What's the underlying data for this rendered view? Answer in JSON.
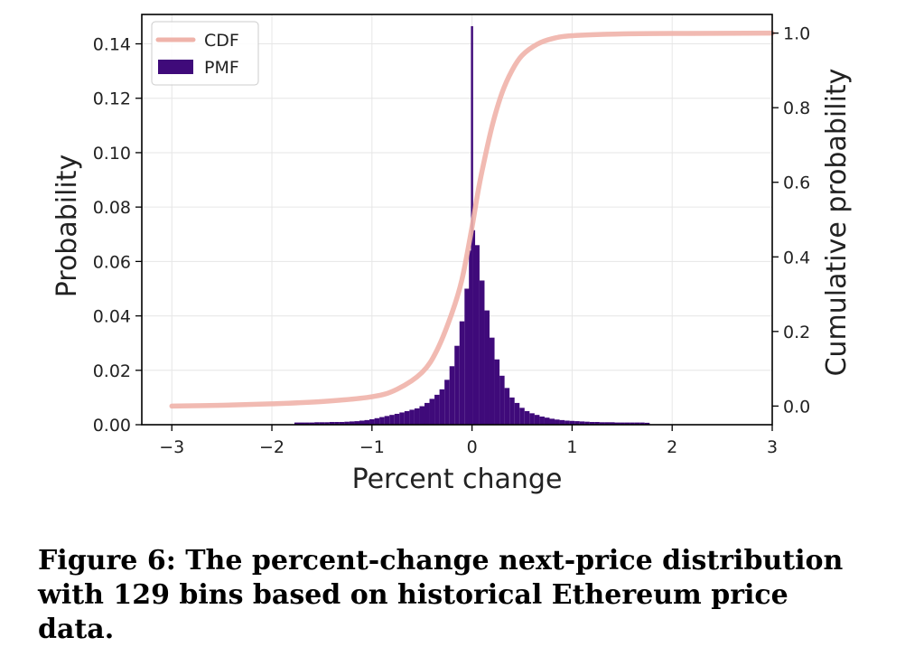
{
  "chart_data": {
    "type": "bar",
    "title": "",
    "xlabel": "Percent change",
    "ylabel": "Probability",
    "y2label": "Cumulative probability",
    "xlim": [
      -3.3,
      3.0
    ],
    "ylim": [
      0,
      0.1508
    ],
    "y2lim": [
      -0.05,
      1.05
    ],
    "xticks": [
      -3,
      -2,
      -1,
      0,
      1,
      2,
      3
    ],
    "xtick_labels": [
      "−3",
      "−2",
      "−1",
      "0",
      "1",
      "2",
      "3"
    ],
    "yticks": [
      0.0,
      0.02,
      0.04,
      0.06,
      0.08,
      0.1,
      0.12,
      0.14
    ],
    "ytick_labels": [
      "0.00",
      "0.02",
      "0.04",
      "0.06",
      "0.08",
      "0.10",
      "0.12",
      "0.14"
    ],
    "y2ticks": [
      0.0,
      0.2,
      0.4,
      0.6,
      0.8,
      1.0
    ],
    "y2tick_labels": [
      "0.0",
      "0.2",
      "0.4",
      "0.6",
      "0.8",
      "1.0"
    ],
    "grid": true,
    "legend": {
      "placement": "top-left",
      "entries": [
        "CDF",
        "PMF"
      ]
    },
    "series": [
      {
        "name": "PMF",
        "kind": "histogram",
        "color": "#3f0a7a",
        "bin_width": 0.05,
        "bins": [
          {
            "x": -1.75,
            "value": 0.0008
          },
          {
            "x": -1.7,
            "value": 0.0008
          },
          {
            "x": -1.65,
            "value": 0.0008
          },
          {
            "x": -1.6,
            "value": 0.0008
          },
          {
            "x": -1.55,
            "value": 0.0009
          },
          {
            "x": -1.5,
            "value": 0.0009
          },
          {
            "x": -1.45,
            "value": 0.0009
          },
          {
            "x": -1.4,
            "value": 0.001
          },
          {
            "x": -1.35,
            "value": 0.001
          },
          {
            "x": -1.3,
            "value": 0.001
          },
          {
            "x": -1.25,
            "value": 0.0011
          },
          {
            "x": -1.2,
            "value": 0.0012
          },
          {
            "x": -1.15,
            "value": 0.0013
          },
          {
            "x": -1.1,
            "value": 0.0015
          },
          {
            "x": -1.05,
            "value": 0.0017
          },
          {
            "x": -1.0,
            "value": 0.002
          },
          {
            "x": -0.95,
            "value": 0.0024
          },
          {
            "x": -0.9,
            "value": 0.0028
          },
          {
            "x": -0.85,
            "value": 0.0032
          },
          {
            "x": -0.8,
            "value": 0.0036
          },
          {
            "x": -0.75,
            "value": 0.004
          },
          {
            "x": -0.7,
            "value": 0.0045
          },
          {
            "x": -0.65,
            "value": 0.005
          },
          {
            "x": -0.6,
            "value": 0.0055
          },
          {
            "x": -0.55,
            "value": 0.006
          },
          {
            "x": -0.5,
            "value": 0.0068
          },
          {
            "x": -0.45,
            "value": 0.008
          },
          {
            "x": -0.4,
            "value": 0.0095
          },
          {
            "x": -0.35,
            "value": 0.011
          },
          {
            "x": -0.3,
            "value": 0.013
          },
          {
            "x": -0.25,
            "value": 0.0165
          },
          {
            "x": -0.2,
            "value": 0.0215
          },
          {
            "x": -0.15,
            "value": 0.029
          },
          {
            "x": -0.1,
            "value": 0.038
          },
          {
            "x": -0.05,
            "value": 0.05
          },
          {
            "x": -0.02,
            "value": 0.064
          },
          {
            "x": 0.0,
            "value": 0.1465
          },
          {
            "x": 0.02,
            "value": 0.0715
          },
          {
            "x": 0.05,
            "value": 0.066
          },
          {
            "x": 0.1,
            "value": 0.053
          },
          {
            "x": 0.15,
            "value": 0.042
          },
          {
            "x": 0.2,
            "value": 0.032
          },
          {
            "x": 0.25,
            "value": 0.024
          },
          {
            "x": 0.3,
            "value": 0.018
          },
          {
            "x": 0.35,
            "value": 0.0135
          },
          {
            "x": 0.4,
            "value": 0.01
          },
          {
            "x": 0.45,
            "value": 0.008
          },
          {
            "x": 0.5,
            "value": 0.0062
          },
          {
            "x": 0.55,
            "value": 0.005
          },
          {
            "x": 0.6,
            "value": 0.0042
          },
          {
            "x": 0.65,
            "value": 0.0036
          },
          {
            "x": 0.7,
            "value": 0.003
          },
          {
            "x": 0.75,
            "value": 0.0026
          },
          {
            "x": 0.8,
            "value": 0.0022
          },
          {
            "x": 0.85,
            "value": 0.0019
          },
          {
            "x": 0.9,
            "value": 0.0017
          },
          {
            "x": 0.95,
            "value": 0.0015
          },
          {
            "x": 1.0,
            "value": 0.0014
          },
          {
            "x": 1.05,
            "value": 0.0013
          },
          {
            "x": 1.1,
            "value": 0.0012
          },
          {
            "x": 1.15,
            "value": 0.0011
          },
          {
            "x": 1.2,
            "value": 0.001
          },
          {
            "x": 1.25,
            "value": 0.001
          },
          {
            "x": 1.3,
            "value": 0.0009
          },
          {
            "x": 1.35,
            "value": 0.0009
          },
          {
            "x": 1.4,
            "value": 0.0009
          },
          {
            "x": 1.45,
            "value": 0.0008
          },
          {
            "x": 1.5,
            "value": 0.0008
          },
          {
            "x": 1.55,
            "value": 0.0008
          },
          {
            "x": 1.6,
            "value": 0.0008
          },
          {
            "x": 1.65,
            "value": 0.0008
          },
          {
            "x": 1.7,
            "value": 0.0008
          },
          {
            "x": 1.75,
            "value": 0.0007
          }
        ]
      },
      {
        "name": "CDF",
        "kind": "line",
        "axis": "right",
        "color": "#efb3aa",
        "points": [
          {
            "x": -3.0,
            "y": 0.0
          },
          {
            "x": -2.5,
            "y": 0.002
          },
          {
            "x": -2.0,
            "y": 0.006
          },
          {
            "x": -1.5,
            "y": 0.012
          },
          {
            "x": -1.0,
            "y": 0.025
          },
          {
            "x": -0.75,
            "y": 0.045
          },
          {
            "x": -0.5,
            "y": 0.09
          },
          {
            "x": -0.35,
            "y": 0.15
          },
          {
            "x": -0.2,
            "y": 0.25
          },
          {
            "x": -0.1,
            "y": 0.34
          },
          {
            "x": 0.0,
            "y": 0.48
          },
          {
            "x": 0.05,
            "y": 0.56
          },
          {
            "x": 0.1,
            "y": 0.63
          },
          {
            "x": 0.2,
            "y": 0.75
          },
          {
            "x": 0.3,
            "y": 0.84
          },
          {
            "x": 0.4,
            "y": 0.9
          },
          {
            "x": 0.5,
            "y": 0.94
          },
          {
            "x": 0.65,
            "y": 0.97
          },
          {
            "x": 0.8,
            "y": 0.985
          },
          {
            "x": 1.0,
            "y": 0.993
          },
          {
            "x": 1.5,
            "y": 0.998
          },
          {
            "x": 2.0,
            "y": 0.999
          },
          {
            "x": 3.0,
            "y": 1.0
          }
        ]
      }
    ]
  },
  "caption": "Figure 6: The percent-change next-price distribution with 129 bins based on historical Ethereum price data."
}
